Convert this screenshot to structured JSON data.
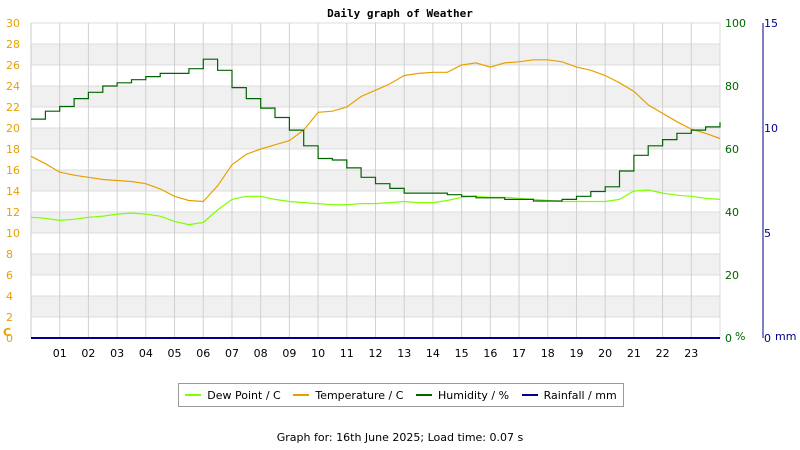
{
  "chart_data": {
    "type": "line",
    "title": "Daily graph of Weather",
    "x_ticks": [
      "01",
      "02",
      "03",
      "04",
      "05",
      "06",
      "07",
      "08",
      "09",
      "10",
      "11",
      "12",
      "13",
      "14",
      "15",
      "16",
      "17",
      "18",
      "19",
      "20",
      "21",
      "22",
      "23"
    ],
    "x_range_hours": [
      0,
      24
    ],
    "axes": {
      "temp": {
        "unit_label": "C",
        "range": [
          0,
          30
        ],
        "step": 2,
        "color": "#e8a000"
      },
      "humidity": {
        "unit_label": "%",
        "range": [
          0,
          100
        ],
        "step": 20,
        "color": "#006400"
      },
      "rain": {
        "unit_label": "mm",
        "range": [
          0,
          15
        ],
        "step": 5,
        "color": "#00008b"
      }
    },
    "grid": true,
    "series": [
      {
        "name": "Dew Point / C",
        "axis": "temp",
        "color": "#7fff00",
        "x": [
          0,
          0.5,
          1,
          1.5,
          2,
          2.5,
          3,
          3.5,
          4,
          4.5,
          5,
          5.5,
          6,
          6.5,
          7,
          7.5,
          8,
          8.5,
          9,
          9.5,
          10,
          10.5,
          11,
          11.5,
          12,
          12.5,
          13,
          13.5,
          14,
          14.5,
          15,
          15.5,
          16,
          16.5,
          17,
          17.5,
          18,
          18.5,
          19,
          19.5,
          20,
          20.5,
          21,
          21.5,
          22,
          22.5,
          23,
          23.5,
          24
        ],
        "y": [
          11.5,
          11.4,
          11.2,
          11.3,
          11.5,
          11.6,
          11.8,
          11.9,
          11.8,
          11.6,
          11.1,
          10.8,
          11.0,
          12.2,
          13.2,
          13.5,
          13.5,
          13.2,
          13.0,
          12.9,
          12.8,
          12.7,
          12.7,
          12.8,
          12.8,
          12.9,
          13.0,
          12.9,
          12.9,
          13.1,
          13.4,
          13.5,
          13.4,
          13.4,
          13.3,
          13.2,
          13.1,
          13.0,
          13.0,
          13.0,
          13.0,
          13.2,
          14.0,
          14.1,
          13.8,
          13.6,
          13.5,
          13.3,
          13.2
        ]
      },
      {
        "name": "Temperature / C",
        "axis": "temp",
        "color": "#e8a000",
        "x": [
          0,
          0.5,
          1,
          1.5,
          2,
          2.5,
          3,
          3.5,
          4,
          4.5,
          5,
          5.5,
          6,
          6.5,
          7,
          7.5,
          8,
          8.5,
          9,
          9.5,
          10,
          10.5,
          11,
          11.5,
          12,
          12.5,
          13,
          13.5,
          14,
          14.5,
          15,
          15.5,
          16,
          16.5,
          17,
          17.5,
          18,
          18.5,
          19,
          19.5,
          20,
          20.5,
          21,
          21.5,
          22,
          22.5,
          23,
          23.5,
          24
        ],
        "y": [
          17.3,
          16.6,
          15.8,
          15.5,
          15.3,
          15.1,
          15.0,
          14.9,
          14.7,
          14.2,
          13.5,
          13.1,
          13.0,
          14.5,
          16.5,
          17.5,
          18.0,
          18.4,
          18.8,
          19.8,
          21.5,
          21.6,
          22.0,
          23.0,
          23.6,
          24.2,
          25.0,
          25.2,
          25.3,
          25.3,
          26.0,
          26.2,
          25.8,
          26.2,
          26.3,
          26.5,
          26.5,
          26.3,
          25.8,
          25.5,
          25.0,
          24.3,
          23.5,
          22.2,
          21.4,
          20.6,
          19.9,
          19.5,
          19.0
        ]
      },
      {
        "name": "Humidity / %",
        "axis": "humidity",
        "color": "#006400",
        "x": [
          0,
          0.5,
          1,
          1.5,
          2,
          2.5,
          3,
          3.5,
          4,
          4.5,
          5,
          5.5,
          6,
          6.5,
          7,
          7.5,
          8,
          8.5,
          9,
          9.5,
          10,
          10.5,
          11,
          11.5,
          12,
          12.5,
          13,
          13.5,
          14,
          14.5,
          15,
          15.5,
          16,
          16.5,
          17,
          17.5,
          18,
          18.5,
          19,
          19.5,
          20,
          20.5,
          21,
          21.5,
          22,
          22.5,
          23,
          23.5,
          24
        ],
        "y": [
          69.5,
          72,
          73.5,
          76,
          78,
          80,
          81,
          82,
          83,
          84,
          84,
          85.5,
          88.5,
          85,
          79.5,
          76,
          73,
          70,
          66,
          61,
          57,
          56.5,
          54,
          51,
          49,
          47.5,
          46,
          46,
          46,
          45.5,
          45,
          44.5,
          44.5,
          44,
          44,
          43.5,
          43.5,
          44,
          45,
          46.5,
          48,
          53,
          58,
          61,
          63,
          65,
          66,
          67,
          68.5
        ]
      },
      {
        "name": "Rainfall / mm",
        "axis": "rain",
        "color": "#00008b",
        "x": [
          0,
          24
        ],
        "y": [
          0,
          0
        ]
      }
    ]
  },
  "footer": {
    "label": "Graph for: 16th June 2025; Load time: 0.07 s"
  }
}
